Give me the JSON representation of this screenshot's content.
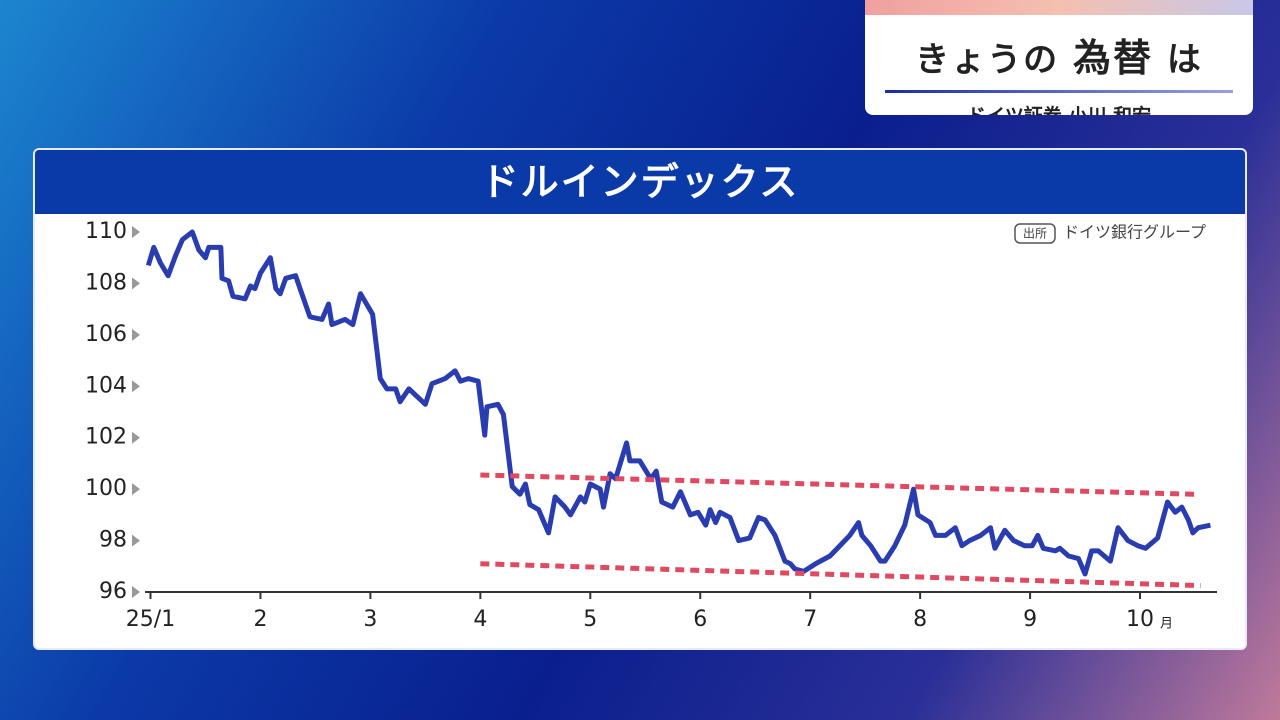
{
  "header": {
    "title_parts": [
      "きょうの",
      "為替",
      "は"
    ],
    "subtitle": "ドイツ証券 小川 和宏"
  },
  "chart_data": {
    "type": "line",
    "title": "ドルインデックス",
    "source_tag": "出所",
    "source": "ドイツ銀行グループ",
    "x_unit": "月",
    "xlim": [
      0.95,
      10.7
    ],
    "ylim": [
      96,
      110
    ],
    "xticks": [
      {
        "value": 1,
        "label": "25/1"
      },
      2,
      3,
      4,
      5,
      6,
      7,
      8,
      9,
      10
    ],
    "yticks": [
      96,
      98,
      100,
      102,
      104,
      106,
      108,
      110
    ],
    "series": [
      {
        "color": "#2a3db0",
        "x": [
          0.98,
          1.03,
          1.09,
          1.16,
          1.23,
          1.29,
          1.38,
          1.44,
          1.5,
          1.53,
          1.64,
          1.65,
          1.71,
          1.75,
          1.86,
          1.91,
          1.95,
          2.0,
          2.09,
          2.14,
          2.18,
          2.23,
          2.32,
          2.36,
          2.45,
          2.56,
          2.62,
          2.65,
          2.77,
          2.84,
          2.91,
          3.02,
          3.09,
          3.15,
          3.23,
          3.27,
          3.35,
          3.5,
          3.56,
          3.68,
          3.77,
          3.82,
          3.89,
          3.98,
          4.04,
          4.06,
          4.16,
          4.21,
          4.29,
          4.36,
          4.41,
          4.45,
          4.53,
          4.62,
          4.68,
          4.77,
          4.82,
          4.91,
          4.95,
          5.0,
          5.09,
          5.12,
          5.18,
          5.23,
          5.33,
          5.36,
          5.45,
          5.55,
          5.6,
          5.65,
          5.75,
          5.82,
          5.91,
          5.98,
          6.05,
          6.09,
          6.14,
          6.18,
          6.27,
          6.35,
          6.45,
          6.53,
          6.59,
          6.68,
          6.77,
          6.82,
          6.86,
          6.94,
          7.05,
          7.18,
          7.27,
          7.36,
          7.44,
          7.47,
          7.55,
          7.64,
          7.68,
          7.77,
          7.86,
          7.94,
          7.98,
          8.09,
          8.14,
          8.23,
          8.32,
          8.38,
          8.45,
          8.55,
          8.64,
          8.68,
          8.77,
          8.85,
          8.95,
          9.02,
          9.07,
          9.12,
          9.23,
          9.27,
          9.35,
          9.44,
          9.5,
          9.56,
          9.62,
          9.73,
          9.8,
          9.89,
          9.98,
          10.05,
          10.16,
          10.25,
          10.32,
          10.38,
          10.44,
          10.48,
          10.53,
          10.64
        ],
        "values": [
          108.7,
          109.4,
          108.8,
          108.3,
          109.1,
          109.7,
          110.0,
          109.3,
          109.0,
          109.4,
          109.4,
          108.2,
          108.1,
          107.5,
          107.4,
          107.9,
          107.8,
          108.4,
          109.0,
          107.8,
          107.6,
          108.2,
          108.3,
          107.8,
          106.7,
          106.6,
          107.2,
          106.4,
          106.6,
          106.4,
          107.6,
          106.8,
          104.3,
          103.9,
          103.9,
          103.4,
          103.9,
          103.3,
          104.1,
          104.3,
          104.6,
          104.2,
          104.3,
          104.2,
          102.1,
          103.2,
          103.3,
          102.9,
          100.1,
          99.8,
          100.2,
          99.4,
          99.2,
          98.3,
          99.7,
          99.3,
          99.0,
          99.7,
          99.5,
          100.2,
          100.0,
          99.3,
          100.6,
          100.4,
          101.8,
          101.1,
          101.1,
          100.4,
          100.7,
          99.5,
          99.3,
          99.9,
          99.0,
          99.1,
          98.6,
          99.2,
          98.7,
          99.1,
          98.9,
          98.0,
          98.1,
          98.9,
          98.8,
          98.2,
          97.2,
          97.1,
          96.9,
          96.8,
          97.1,
          97.4,
          97.8,
          98.2,
          98.7,
          98.2,
          97.8,
          97.2,
          97.2,
          97.8,
          98.6,
          100.0,
          99.0,
          98.7,
          98.2,
          98.2,
          98.5,
          97.8,
          98.0,
          98.2,
          98.5,
          97.7,
          98.4,
          98.0,
          97.8,
          97.8,
          98.2,
          97.7,
          97.6,
          97.7,
          97.4,
          97.3,
          96.7,
          97.6,
          97.6,
          97.2,
          98.5,
          98.0,
          97.8,
          97.7,
          98.1,
          99.5,
          99.1,
          99.3,
          98.8,
          98.3,
          98.5,
          98.6
        ]
      }
    ],
    "trend_lines": [
      {
        "color": "#e04a60",
        "x": [
          4.0,
          10.5
        ],
        "values": [
          100.55,
          99.8
        ]
      },
      {
        "color": "#e04a60",
        "x": [
          4.0,
          10.55
        ],
        "values": [
          97.1,
          96.25
        ]
      }
    ]
  }
}
